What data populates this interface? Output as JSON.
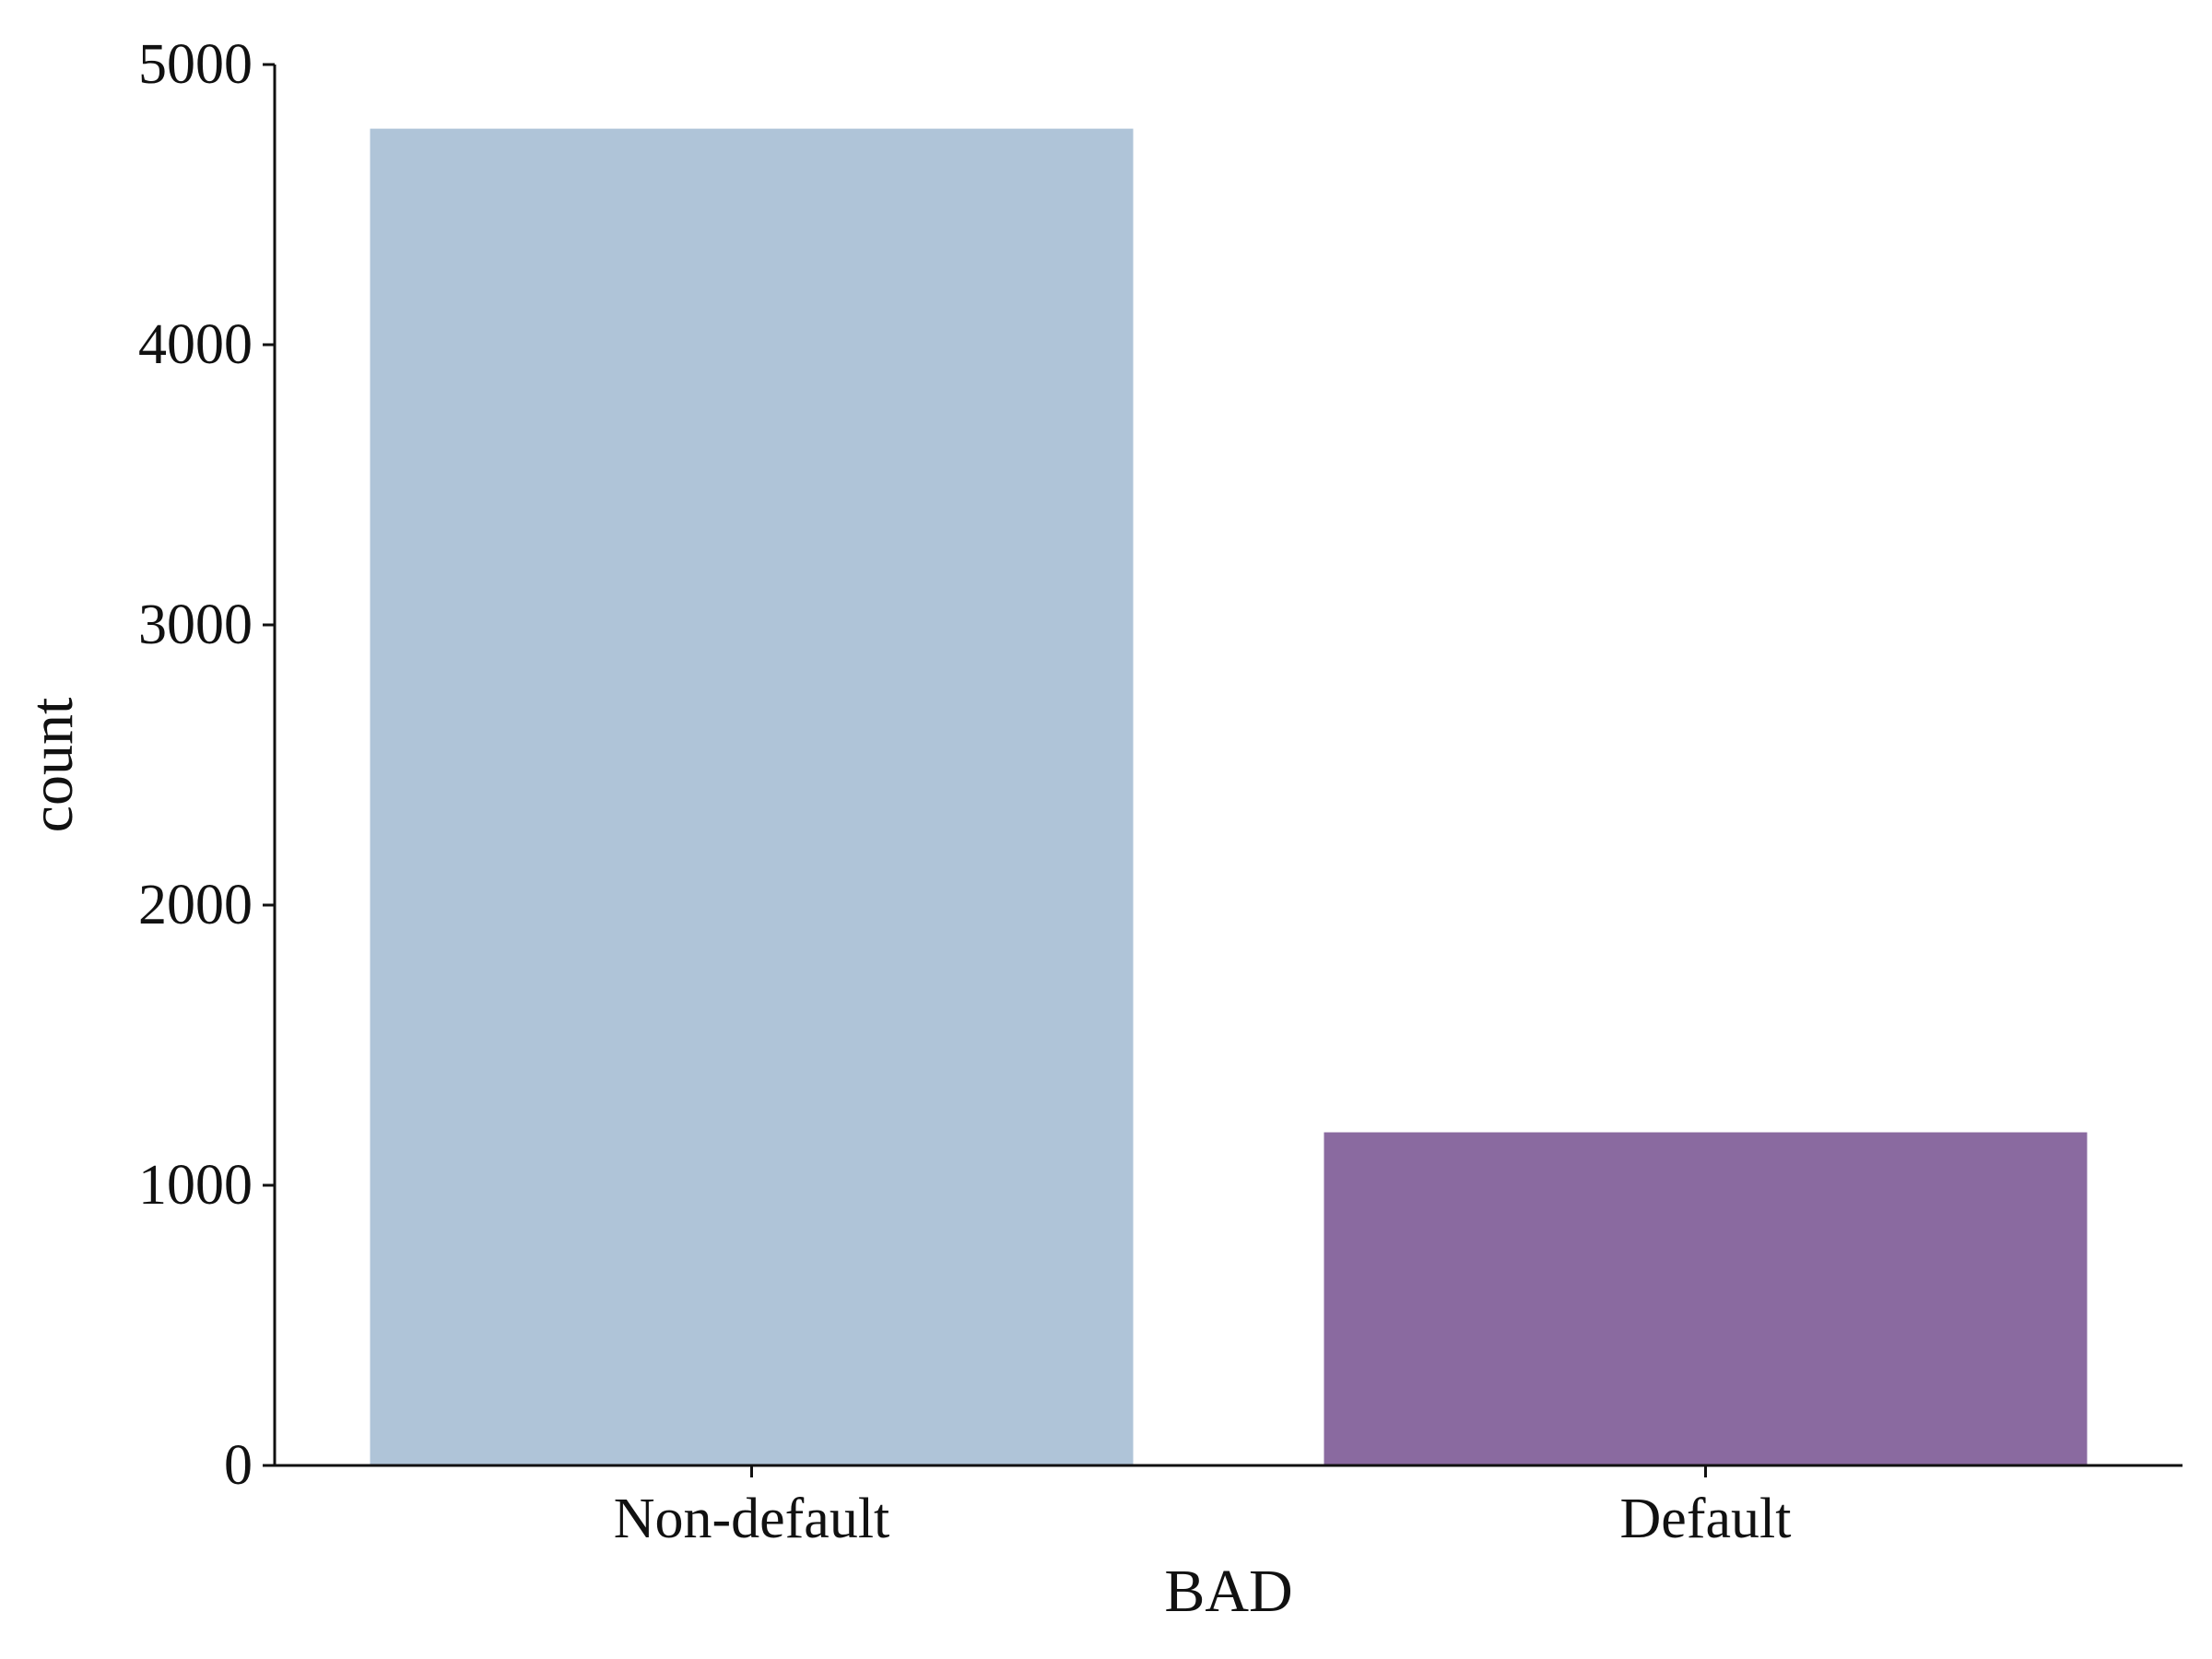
{
  "chart_data": {
    "type": "bar",
    "title": "",
    "xlabel": "BAD",
    "ylabel": "count",
    "categories": [
      "Non-default",
      "Default"
    ],
    "values": [
      4771,
      1189
    ],
    "bar_colors": [
      "#afc4d8",
      "#8a6aa0"
    ],
    "ylim": [
      0,
      5000
    ],
    "yticks": [
      0,
      1000,
      2000,
      3000,
      4000,
      5000
    ],
    "ytick_labels": [
      "0",
      "1000",
      "2000",
      "3000",
      "4000",
      "5000"
    ],
    "grid": false,
    "legend": "none"
  }
}
